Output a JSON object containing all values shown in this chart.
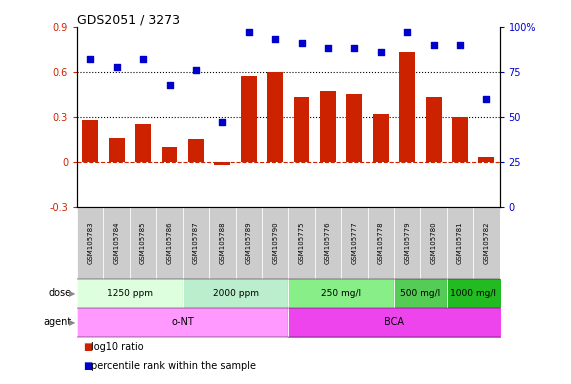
{
  "title": "GDS2051 / 3273",
  "samples": [
    "GSM105783",
    "GSM105784",
    "GSM105785",
    "GSM105786",
    "GSM105787",
    "GSM105788",
    "GSM105789",
    "GSM105790",
    "GSM105775",
    "GSM105776",
    "GSM105777",
    "GSM105778",
    "GSM105779",
    "GSM105780",
    "GSM105781",
    "GSM105782"
  ],
  "log10_ratio": [
    0.28,
    0.16,
    0.25,
    0.1,
    0.15,
    -0.02,
    0.57,
    0.6,
    0.43,
    0.47,
    0.45,
    0.32,
    0.73,
    0.43,
    0.3,
    0.03
  ],
  "percentile_rank": [
    82,
    78,
    82,
    68,
    76,
    47,
    97,
    93,
    91,
    88,
    88,
    86,
    97,
    90,
    90,
    60
  ],
  "bar_color": "#cc2200",
  "dot_color": "#0000cc",
  "dose_groups": [
    {
      "label": "1250 ppm",
      "start": 0,
      "end": 3,
      "color": "#ddffdd"
    },
    {
      "label": "2000 ppm",
      "start": 4,
      "end": 7,
      "color": "#bbeecc"
    },
    {
      "label": "250 mg/l",
      "start": 8,
      "end": 11,
      "color": "#88ee88"
    },
    {
      "label": "500 mg/l",
      "start": 12,
      "end": 13,
      "color": "#55cc55"
    },
    {
      "label": "1000 mg/l",
      "start": 14,
      "end": 15,
      "color": "#22bb22"
    }
  ],
  "agent_groups": [
    {
      "label": "o-NT",
      "start": 0,
      "end": 7,
      "color": "#ff99ff"
    },
    {
      "label": "BCA",
      "start": 8,
      "end": 15,
      "color": "#ee44ee"
    }
  ],
  "ylim_left": [
    -0.3,
    0.9
  ],
  "ylim_right": [
    0,
    100
  ],
  "yticks_left": [
    -0.3,
    0.0,
    0.3,
    0.6,
    0.9
  ],
  "yticks_right": [
    0,
    25,
    50,
    75,
    100
  ],
  "hlines": [
    0.3,
    0.6
  ],
  "background_color": "#ffffff",
  "xlabel_color": "#888888",
  "sample_box_color": "#cccccc"
}
